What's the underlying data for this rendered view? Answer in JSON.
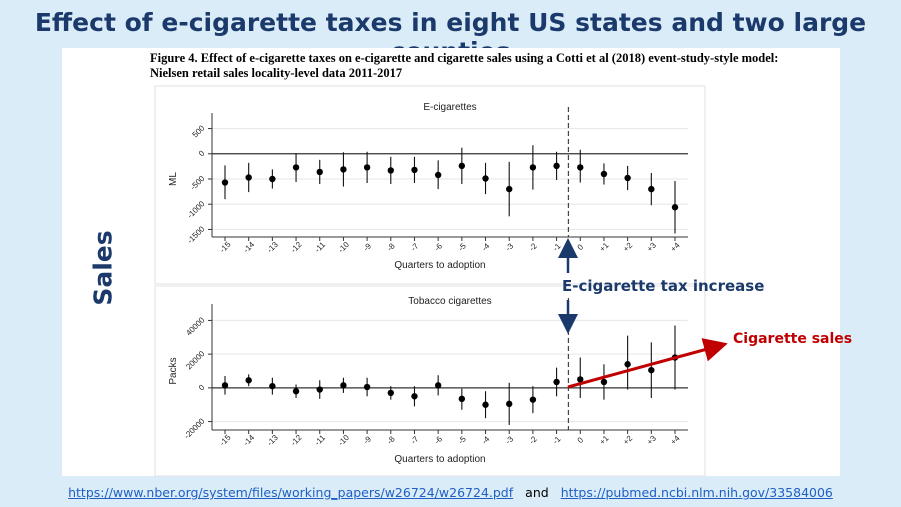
{
  "slide": {
    "title": "Effect of e-cigarette taxes in eight US states and two large counties",
    "side_label": "Sales"
  },
  "figure": {
    "caption": "Figure 4. Effect of e-cigarette taxes on e-cigarette and cigarette sales using a Cotti et al (2018) event-study-style model: Nielsen retail sales locality-level data 2011-2017"
  },
  "annotations": {
    "tax_increase": "E-cigarette tax increase",
    "cigarette_sales": "Cigarette sales",
    "colors": {
      "navy": "#1b3a6b",
      "red": "#c00000"
    }
  },
  "footer": {
    "link1": "https://www.nber.org/system/files/working_papers/w26724/w26724.pdf",
    "and": "and",
    "link2": "https://pubmed.ncbi.nlm.nih.gov/33584006"
  },
  "chart_data": [
    {
      "type": "scatter",
      "title": "E-cigarettes",
      "xlabel": "Quarters to adoption",
      "ylabel": "ML",
      "x_ticks": [
        "-15",
        "-14",
        "-13",
        "-12",
        "-11",
        "-10",
        "-9",
        "-8",
        "-7",
        "-6",
        "-5",
        "-4",
        "-3",
        "-2",
        "-1",
        "0",
        "+1",
        "+2",
        "+3",
        "+4"
      ],
      "y_ticks": [
        500,
        0,
        -500,
        -1000,
        -1500
      ],
      "ylim": [
        -1650,
        650
      ],
      "series": [
        {
          "values": [
            -570,
            -470,
            -500,
            -270,
            -360,
            -310,
            -270,
            -330,
            -320,
            -420,
            -240,
            -490,
            -700,
            -270,
            -240,
            -270,
            -400,
            -480,
            -700,
            -1060
          ],
          "ci_low": [
            -900,
            -760,
            -690,
            -560,
            -600,
            -650,
            -580,
            -600,
            -580,
            -700,
            -600,
            -800,
            -1240,
            -710,
            -520,
            -570,
            -610,
            -720,
            -1020,
            -1580
          ],
          "ci_high": [
            -230,
            -180,
            -310,
            10,
            -120,
            30,
            40,
            -60,
            -60,
            -130,
            120,
            -180,
            -160,
            170,
            40,
            80,
            -190,
            -240,
            -380,
            -540
          ]
        }
      ],
      "event_line_at": "-0.5",
      "zero_line": true
    },
    {
      "type": "scatter",
      "title": "Tobacco cigarettes",
      "xlabel": "Quarters to adoption",
      "ylabel": "Packs",
      "x_ticks": [
        "-15",
        "-14",
        "-13",
        "-12",
        "-11",
        "-10",
        "-9",
        "-8",
        "-7",
        "-6",
        "-5",
        "-4",
        "-3",
        "-2",
        "-1",
        "0",
        "+1",
        "+2",
        "+3",
        "+4"
      ],
      "y_ticks": [
        40000,
        20000,
        0,
        -20000
      ],
      "ylim": [
        -25000,
        45000
      ],
      "series": [
        {
          "values": [
            1500,
            4500,
            1000,
            -2000,
            -1000,
            1500,
            500,
            -3000,
            -5000,
            1500,
            -6500,
            -10000,
            -9500,
            -7000,
            3500,
            5000,
            3500,
            14000,
            10500,
            18000
          ],
          "ci_low": [
            -4000,
            1000,
            -4000,
            -6000,
            -6500,
            -3000,
            -5000,
            -7000,
            -11000,
            -4500,
            -13000,
            -18000,
            -22000,
            -15000,
            -5000,
            -6000,
            -7000,
            -1000,
            -6000,
            -1000
          ],
          "ci_high": [
            7000,
            8000,
            6000,
            2000,
            4500,
            6000,
            6000,
            1000,
            1000,
            7500,
            -500,
            -2000,
            3000,
            1000,
            12000,
            18000,
            14000,
            31000,
            27000,
            37000
          ]
        }
      ],
      "event_line_at": "-0.5",
      "zero_line": true
    }
  ]
}
